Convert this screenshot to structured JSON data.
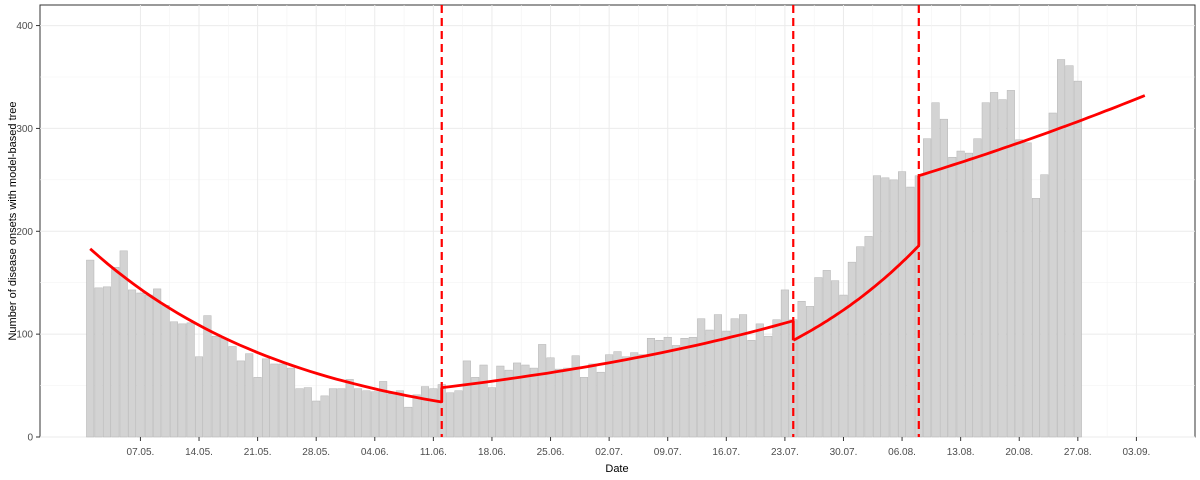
{
  "chart_data": {
    "type": "bar",
    "xlabel": "Date",
    "ylabel": "Number of disease onsets with model-based tree",
    "ylim": [
      0,
      420
    ],
    "y_ticks": [
      0,
      100,
      200,
      300,
      400
    ],
    "grid": true,
    "x_tick_labels": [
      "07.05.",
      "14.05.",
      "21.05.",
      "28.05.",
      "04.06.",
      "11.06.",
      "18.06.",
      "25.06.",
      "02.07.",
      "09.07.",
      "16.07.",
      "23.07.",
      "30.07.",
      "06.08.",
      "13.08.",
      "20.08.",
      "27.08.",
      "03.09."
    ],
    "x_tick_days": [
      6,
      13,
      20,
      27,
      34,
      41,
      48,
      55,
      62,
      69,
      76,
      83,
      90,
      97,
      104,
      111,
      118,
      125
    ],
    "start_date": "01.05.",
    "xlim_days": [
      -6,
      132
    ],
    "bar_color": "#d3d3d3",
    "bar_border_color": "#b3b3b3",
    "fit_color": "#ff0000",
    "split_color": "#ff0000",
    "values": [
      172,
      145,
      146,
      165,
      181,
      143,
      140,
      138,
      144,
      128,
      112,
      110,
      111,
      78,
      118,
      98,
      96,
      88,
      74,
      81,
      58,
      76,
      71,
      71,
      67,
      47,
      48,
      35,
      40,
      47,
      47,
      56,
      47,
      45,
      44,
      54,
      42,
      45,
      29,
      41,
      49,
      47,
      51,
      43,
      45,
      74,
      58,
      70,
      48,
      69,
      65,
      72,
      70,
      67,
      90,
      77,
      66,
      67,
      79,
      58,
      71,
      63,
      80,
      83,
      78,
      82,
      80,
      96,
      94,
      97,
      89,
      96,
      97,
      115,
      104,
      119,
      103,
      115,
      119,
      94,
      110,
      98,
      114,
      143,
      114,
      132,
      127,
      155,
      162,
      152,
      138,
      170,
      185,
      195,
      254,
      252,
      250,
      258,
      243,
      254,
      290,
      325,
      309,
      272,
      278,
      276,
      290,
      325,
      335,
      328,
      337,
      289,
      286,
      232,
      255,
      315,
      367,
      361,
      346
    ],
    "segments": [
      {
        "x_start": 0,
        "x_end": 42,
        "y_start": 183,
        "y_end": 34
      },
      {
        "x_start": 42,
        "x_end": 84,
        "y_start": 48,
        "y_end": 113
      },
      {
        "x_start": 84,
        "x_end": 99,
        "y_start": 94,
        "y_end": 186
      },
      {
        "x_start": 99,
        "x_end": 126,
        "y_start": 254,
        "y_end": 332
      }
    ],
    "splits": [
      42,
      84,
      99
    ]
  }
}
